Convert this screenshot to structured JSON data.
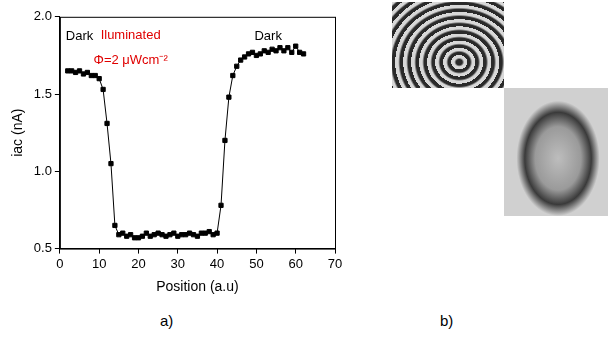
{
  "chart_data": {
    "type": "line",
    "panel_label": "a)",
    "x_label": "Position (a.u)",
    "y_label": "iac (nA)",
    "xlim": [
      0,
      70
    ],
    "xticks": [
      0,
      10,
      20,
      30,
      40,
      50,
      60,
      70
    ],
    "ylim": [
      0.5,
      2.0
    ],
    "yticks": [
      0.5,
      {
        "value": 1.0,
        "label": "1.0"
      },
      1.5,
      {
        "value": 2.0,
        "label": "2.0"
      }
    ],
    "grid": false,
    "series": [
      {
        "color": "#000000",
        "marker": "square",
        "line_style": "solid",
        "x": [
          2,
          3,
          4,
          5,
          6,
          7,
          8,
          9,
          10,
          11,
          12,
          13,
          14,
          15,
          16,
          17,
          18,
          19,
          20,
          21,
          22,
          23,
          24,
          25,
          26,
          27,
          28,
          29,
          30,
          31,
          32,
          33,
          34,
          35,
          36,
          37,
          38,
          39,
          40,
          41,
          42,
          43,
          44,
          45,
          46,
          47,
          48,
          49,
          50,
          51,
          52,
          53,
          54,
          55,
          56,
          57,
          58,
          59,
          60,
          61,
          62
        ],
        "values": [
          1.65,
          1.65,
          1.64,
          1.65,
          1.63,
          1.64,
          1.62,
          1.62,
          1.6,
          1.53,
          1.31,
          1.05,
          0.65,
          0.59,
          0.6,
          0.58,
          0.59,
          0.57,
          0.57,
          0.58,
          0.6,
          0.58,
          0.59,
          0.6,
          0.59,
          0.58,
          0.59,
          0.6,
          0.58,
          0.59,
          0.59,
          0.6,
          0.59,
          0.58,
          0.6,
          0.6,
          0.61,
          0.59,
          0.6,
          0.78,
          1.2,
          1.48,
          1.62,
          1.68,
          1.72,
          1.74,
          1.76,
          1.77,
          1.75,
          1.76,
          1.78,
          1.77,
          1.79,
          1.78,
          1.8,
          1.78,
          1.8,
          1.77,
          1.81,
          1.77,
          1.76
        ]
      }
    ],
    "annotations": [
      {
        "text": "Dark",
        "x": 5,
        "y": 1.87,
        "color": "#000000"
      },
      {
        "text": "Iluminated",
        "x": 18,
        "y": 1.88,
        "color": "#e00000"
      },
      {
        "text": "Φ=2 μWcm⁻²",
        "x": 18,
        "y": 1.72,
        "color": "#e00000"
      },
      {
        "text": "Dark",
        "x": 53,
        "y": 1.87,
        "color": "#000000"
      }
    ]
  },
  "panel_b": {
    "label": "b)"
  }
}
